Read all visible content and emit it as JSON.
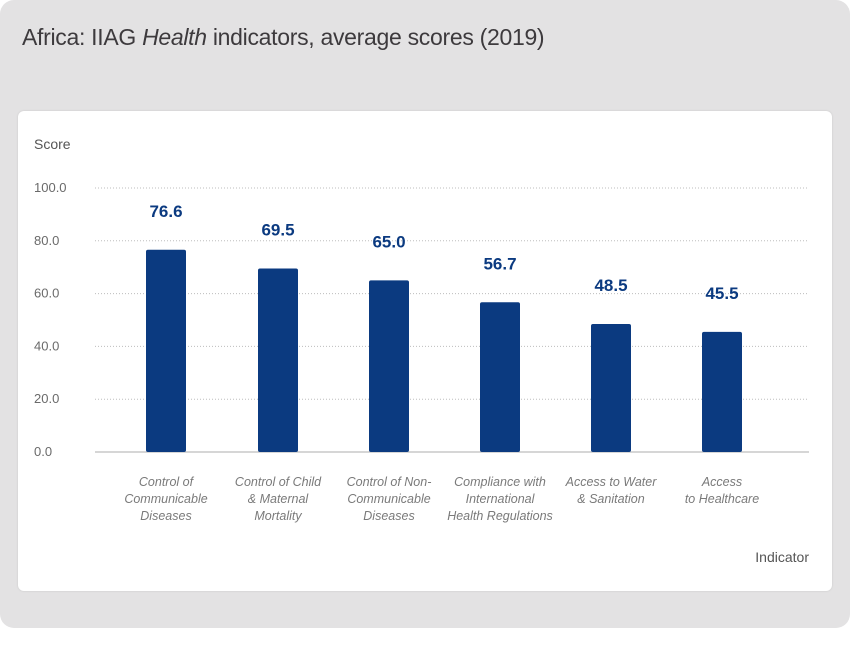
{
  "title": {
    "prefix": "Africa: IIAG ",
    "italic": "Health",
    "suffix": " indicators, average scores (2019)"
  },
  "chart_data": {
    "type": "bar",
    "title": "Africa: IIAG Health indicators, average scores (2019)",
    "xlabel": "Indicator",
    "ylabel": "Score",
    "ylim": [
      0,
      100
    ],
    "yticks": [
      "0.0",
      "20.0",
      "40.0",
      "60.0",
      "80.0",
      "100.0"
    ],
    "grid": true,
    "bar_color": "#0b3a80",
    "categories": [
      [
        "Control of",
        "Communicable",
        "Diseases"
      ],
      [
        "Control of Child",
        "& Maternal",
        "Mortality"
      ],
      [
        "Control of Non-",
        "Communicable",
        "Diseases"
      ],
      [
        "Compliance with",
        "International",
        "Health Regulations"
      ],
      [
        "Access to Water",
        "& Sanitation"
      ],
      [
        "Access",
        "to Healthcare"
      ]
    ],
    "values": [
      76.6,
      69.5,
      65.0,
      56.7,
      48.5,
      45.5
    ],
    "value_labels": [
      "76.6",
      "69.5",
      "65.0",
      "56.7",
      "48.5",
      "45.5"
    ]
  }
}
